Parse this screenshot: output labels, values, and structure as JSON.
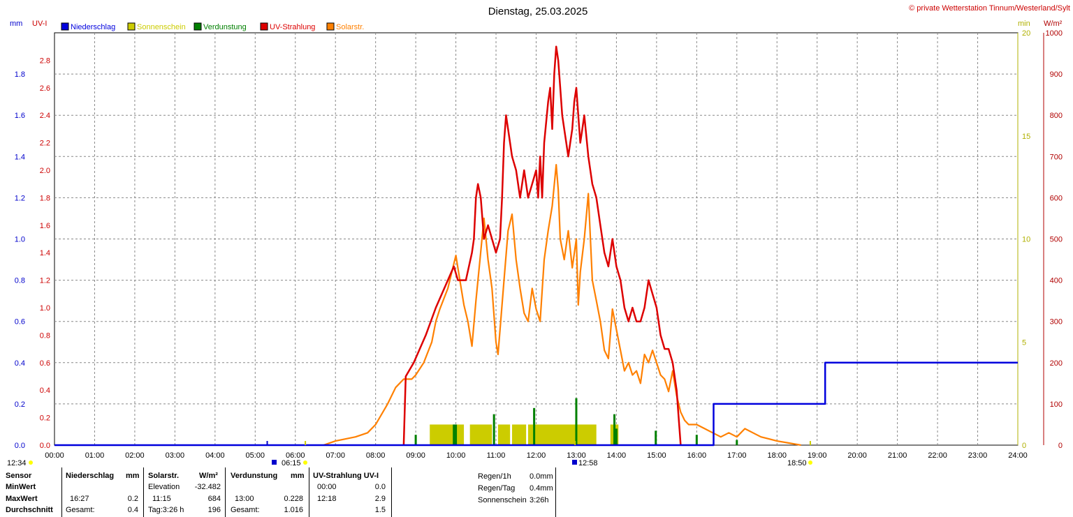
{
  "chart_data": {
    "type": "line",
    "title": "Dienstag, 25.03.2025",
    "copyright": "© private Wetterstation Tinnum/Westerland/Sylt",
    "axes": {
      "left_mm": {
        "label": "mm",
        "range": [
          0,
          2.0
        ],
        "ticks": [
          "0.0",
          "0.2",
          "0.4",
          "0.6",
          "0.8",
          "1.0",
          "1.2",
          "1.4",
          "1.6",
          "1.8"
        ],
        "color": "#0000cc"
      },
      "left_uv": {
        "label": "UV-I",
        "range": [
          0,
          3.0
        ],
        "ticks": [
          "0.0",
          "0.2",
          "0.4",
          "0.6",
          "0.8",
          "1.0",
          "1.2",
          "1.4",
          "1.6",
          "1.8",
          "2.0",
          "2.2",
          "2.4",
          "2.6",
          "2.8"
        ],
        "color": "#cc0000"
      },
      "right_min": {
        "label": "min",
        "range": [
          0,
          20
        ],
        "ticks": [
          "0",
          "5",
          "10",
          "15",
          "20"
        ],
        "color": "#b0b000"
      },
      "right_wm2": {
        "label": "W/m²",
        "range": [
          0,
          1000
        ],
        "ticks": [
          "0",
          "100",
          "200",
          "300",
          "400",
          "500",
          "600",
          "700",
          "800",
          "900",
          "1000"
        ],
        "color": "#b00000"
      },
      "x": {
        "range": [
          0,
          24
        ],
        "ticks": [
          "00:00",
          "01:00",
          "02:00",
          "03:00",
          "04:00",
          "05:00",
          "06:00",
          "07:00",
          "08:00",
          "09:00",
          "10:00",
          "11:00",
          "12:00",
          "13:00",
          "14:00",
          "15:00",
          "16:00",
          "17:00",
          "18:00",
          "19:00",
          "20:00",
          "21:00",
          "22:00",
          "23:00",
          "24:00"
        ]
      }
    },
    "legend": [
      {
        "name": "Niederschlag",
        "color": "#0000dd"
      },
      {
        "name": "Sonnenschein",
        "color": "#cccc00"
      },
      {
        "name": "Verdunstung",
        "color": "#008000"
      },
      {
        "name": "UV-Strahlung",
        "color": "#dd0000"
      },
      {
        "name": "Solarstr.",
        "color": "#ff8000"
      }
    ],
    "series": {
      "niederschlag": {
        "axis": "mm",
        "points": [
          [
            0,
            0
          ],
          [
            16.42,
            0
          ],
          [
            16.42,
            0.2
          ],
          [
            19.2,
            0.2
          ],
          [
            19.2,
            0.4
          ],
          [
            24,
            0.4
          ]
        ]
      },
      "uv": {
        "axis": "uv",
        "points": [
          [
            8.7,
            0
          ],
          [
            8.75,
            0.5
          ],
          [
            8.95,
            0.6
          ],
          [
            9.25,
            0.8
          ],
          [
            9.5,
            1.0
          ],
          [
            9.8,
            1.2
          ],
          [
            9.95,
            1.3
          ],
          [
            10.05,
            1.2
          ],
          [
            10.25,
            1.2
          ],
          [
            10.4,
            1.4
          ],
          [
            10.45,
            1.5
          ],
          [
            10.5,
            1.8
          ],
          [
            10.55,
            1.9
          ],
          [
            10.62,
            1.8
          ],
          [
            10.7,
            1.5
          ],
          [
            10.8,
            1.6
          ],
          [
            10.9,
            1.5
          ],
          [
            11.0,
            1.4
          ],
          [
            11.1,
            1.5
          ],
          [
            11.15,
            1.8
          ],
          [
            11.2,
            2.2
          ],
          [
            11.25,
            2.4
          ],
          [
            11.3,
            2.3
          ],
          [
            11.4,
            2.1
          ],
          [
            11.5,
            2.0
          ],
          [
            11.6,
            1.8
          ],
          [
            11.7,
            2.0
          ],
          [
            11.8,
            1.8
          ],
          [
            11.9,
            1.9
          ],
          [
            12.0,
            2.0
          ],
          [
            12.05,
            1.8
          ],
          [
            12.1,
            2.1
          ],
          [
            12.15,
            1.8
          ],
          [
            12.2,
            2.2
          ],
          [
            12.3,
            2.5
          ],
          [
            12.35,
            2.6
          ],
          [
            12.4,
            2.3
          ],
          [
            12.45,
            2.7
          ],
          [
            12.5,
            2.9
          ],
          [
            12.55,
            2.8
          ],
          [
            12.6,
            2.6
          ],
          [
            12.65,
            2.4
          ],
          [
            12.7,
            2.3
          ],
          [
            12.75,
            2.2
          ],
          [
            12.8,
            2.1
          ],
          [
            12.85,
            2.2
          ],
          [
            12.9,
            2.3
          ],
          [
            12.95,
            2.5
          ],
          [
            13.0,
            2.6
          ],
          [
            13.05,
            2.4
          ],
          [
            13.1,
            2.2
          ],
          [
            13.15,
            2.3
          ],
          [
            13.2,
            2.4
          ],
          [
            13.3,
            2.1
          ],
          [
            13.4,
            1.9
          ],
          [
            13.5,
            1.8
          ],
          [
            13.6,
            1.6
          ],
          [
            13.7,
            1.4
          ],
          [
            13.8,
            1.3
          ],
          [
            13.85,
            1.4
          ],
          [
            13.9,
            1.5
          ],
          [
            14.0,
            1.3
          ],
          [
            14.1,
            1.2
          ],
          [
            14.2,
            1.0
          ],
          [
            14.3,
            0.9
          ],
          [
            14.4,
            1.0
          ],
          [
            14.5,
            0.9
          ],
          [
            14.6,
            0.9
          ],
          [
            14.7,
            1.0
          ],
          [
            14.8,
            1.2
          ],
          [
            14.9,
            1.1
          ],
          [
            15.0,
            1.0
          ],
          [
            15.1,
            0.8
          ],
          [
            15.2,
            0.7
          ],
          [
            15.3,
            0.7
          ],
          [
            15.4,
            0.6
          ],
          [
            15.5,
            0.4
          ],
          [
            15.55,
            0.2
          ],
          [
            15.6,
            0
          ]
        ]
      },
      "solar": {
        "axis": "wm2",
        "points": [
          [
            6.7,
            0
          ],
          [
            7.0,
            10
          ],
          [
            7.5,
            20
          ],
          [
            7.8,
            30
          ],
          [
            8.0,
            50
          ],
          [
            8.3,
            100
          ],
          [
            8.5,
            140
          ],
          [
            8.7,
            160
          ],
          [
            8.9,
            160
          ],
          [
            9.0,
            170
          ],
          [
            9.2,
            200
          ],
          [
            9.4,
            250
          ],
          [
            9.5,
            300
          ],
          [
            9.6,
            330
          ],
          [
            9.8,
            380
          ],
          [
            9.9,
            420
          ],
          [
            10.0,
            460
          ],
          [
            10.1,
            400
          ],
          [
            10.2,
            340
          ],
          [
            10.3,
            300
          ],
          [
            10.4,
            240
          ],
          [
            10.5,
            350
          ],
          [
            10.6,
            450
          ],
          [
            10.7,
            550
          ],
          [
            10.8,
            450
          ],
          [
            10.9,
            380
          ],
          [
            11.0,
            250
          ],
          [
            11.05,
            220
          ],
          [
            11.1,
            280
          ],
          [
            11.2,
            400
          ],
          [
            11.3,
            520
          ],
          [
            11.4,
            560
          ],
          [
            11.5,
            450
          ],
          [
            11.6,
            380
          ],
          [
            11.7,
            320
          ],
          [
            11.8,
            300
          ],
          [
            11.9,
            380
          ],
          [
            12.0,
            330
          ],
          [
            12.1,
            300
          ],
          [
            12.2,
            450
          ],
          [
            12.3,
            520
          ],
          [
            12.4,
            580
          ],
          [
            12.5,
            680
          ],
          [
            12.55,
            620
          ],
          [
            12.6,
            500
          ],
          [
            12.7,
            450
          ],
          [
            12.8,
            520
          ],
          [
            12.9,
            430
          ],
          [
            13.0,
            500
          ],
          [
            13.05,
            340
          ],
          [
            13.1,
            420
          ],
          [
            13.2,
            500
          ],
          [
            13.3,
            610
          ],
          [
            13.4,
            400
          ],
          [
            13.5,
            350
          ],
          [
            13.6,
            300
          ],
          [
            13.7,
            230
          ],
          [
            13.8,
            210
          ],
          [
            13.9,
            330
          ],
          [
            14.0,
            280
          ],
          [
            14.1,
            230
          ],
          [
            14.2,
            180
          ],
          [
            14.3,
            200
          ],
          [
            14.4,
            170
          ],
          [
            14.5,
            180
          ],
          [
            14.6,
            150
          ],
          [
            14.7,
            220
          ],
          [
            14.8,
            200
          ],
          [
            14.9,
            230
          ],
          [
            15.0,
            200
          ],
          [
            15.1,
            170
          ],
          [
            15.2,
            160
          ],
          [
            15.3,
            130
          ],
          [
            15.4,
            180
          ],
          [
            15.5,
            120
          ],
          [
            15.6,
            80
          ],
          [
            15.7,
            60
          ],
          [
            15.8,
            50
          ],
          [
            16.0,
            50
          ],
          [
            16.2,
            40
          ],
          [
            16.4,
            30
          ],
          [
            16.6,
            20
          ],
          [
            16.8,
            30
          ],
          [
            17.0,
            20
          ],
          [
            17.1,
            30
          ],
          [
            17.2,
            40
          ],
          [
            17.4,
            30
          ],
          [
            17.6,
            20
          ],
          [
            17.8,
            15
          ],
          [
            18.0,
            10
          ],
          [
            18.3,
            5
          ],
          [
            18.6,
            0
          ]
        ]
      },
      "sonnenschein_blocks": {
        "axis": "min",
        "blocks": [
          [
            9.35,
            10.2,
            1.0
          ],
          [
            10.35,
            10.9,
            1.0
          ],
          [
            11.05,
            11.35,
            1.0
          ],
          [
            11.4,
            11.75,
            1.0
          ],
          [
            11.8,
            13.5,
            1.0
          ],
          [
            13.85,
            14.05,
            1.0
          ]
        ]
      },
      "verdunstung_bars": {
        "axis": "mm",
        "bars": [
          [
            9.0,
            0.05
          ],
          [
            9.95,
            0.1
          ],
          [
            10.0,
            0.1
          ],
          [
            10.95,
            0.15
          ],
          [
            11.95,
            0.18
          ],
          [
            13.0,
            0.228
          ],
          [
            13.95,
            0.15
          ],
          [
            14.0,
            0.08
          ],
          [
            14.98,
            0.07
          ],
          [
            16.0,
            0.05
          ],
          [
            17.0,
            0.025
          ]
        ]
      }
    },
    "markers": {
      "left_time": "12:34",
      "sunrise": "06:15",
      "noon": "12:58",
      "sunset": "18:50"
    }
  },
  "summary": {
    "headers": {
      "sensor": "Sensor",
      "niederschlag": "Niederschlag",
      "nied_unit": "mm",
      "solar": "Solarstr.",
      "solar_unit": "W/m²",
      "verd": "Verdunstung",
      "verd_unit": "mm",
      "uv": "UV-Strahlung UV-I"
    },
    "rows": {
      "min": {
        "label": "MinWert",
        "solar_time": "Elevation",
        "solar_val": "-32.482",
        "uv_time": "00:00",
        "uv_val": "0.0"
      },
      "max": {
        "label": "MaxWert",
        "nied_time": "16:27",
        "nied_val": "0.2",
        "solar_time": "11:15",
        "solar_val": "684",
        "verd_time": "13:00",
        "verd_val": "0.228",
        "uv_time": "12:18",
        "uv_val": "2.9"
      },
      "avg": {
        "label": "Durchschnitt",
        "nied_time": "Gesamt:",
        "nied_val": "0.4",
        "solar_time": "Tag:3:26 h",
        "solar_val": "196",
        "verd_time": "Gesamt:",
        "verd_val": "1.016",
        "uv_val": "1.5"
      }
    },
    "stats": [
      {
        "label": "Regen/1h",
        "value": "0.0mm"
      },
      {
        "label": "Regen/Tag",
        "value": "0.4mm"
      },
      {
        "label": "Sonnenschein",
        "value": "3:26h"
      }
    ]
  }
}
